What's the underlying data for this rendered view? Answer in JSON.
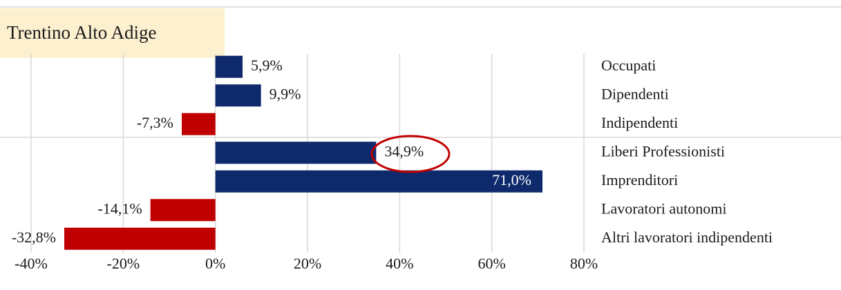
{
  "chart_data": {
    "type": "hbar",
    "title": "Trentino Alto Adige",
    "categories": [
      "Occupati",
      "Dipendenti",
      "Indipendenti",
      "Liberi Professionisti",
      "Imprenditori",
      "Lavoratori autonomi",
      "Altri lavoratori indipendenti"
    ],
    "values": [
      5.9,
      9.9,
      -7.3,
      34.9,
      71.0,
      -14.1,
      -32.8
    ],
    "value_labels": [
      "5,9%",
      "9,9%",
      "-7,3%",
      "34,9%",
      "71,0%",
      "-14,1%",
      "-32,8%"
    ],
    "colors": [
      "#0e2a6c",
      "#0e2a6c",
      "#c00000",
      "#0e2a6c",
      "#0e2a6c",
      "#c00000",
      "#c00000"
    ],
    "xlim": [
      -40,
      80
    ],
    "xticks": [
      {
        "value": -40,
        "label": "-40%"
      },
      {
        "value": -20,
        "label": "-20%"
      },
      {
        "value": 0,
        "label": "0%"
      },
      {
        "value": 20,
        "label": "20%"
      },
      {
        "value": 40,
        "label": "40%"
      },
      {
        "value": 60,
        "label": "60%"
      },
      {
        "value": 80,
        "label": "80%"
      }
    ],
    "grid": true
  }
}
